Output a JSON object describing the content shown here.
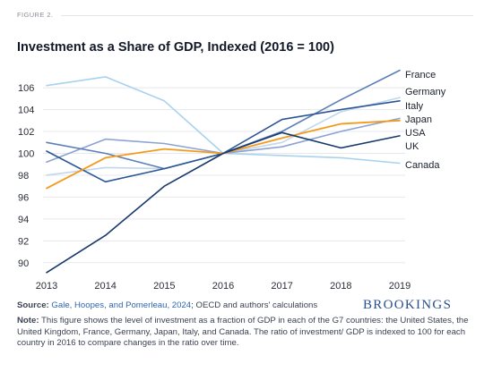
{
  "figure_label": "FIGURE 2.",
  "title": "Investment as a Share of GDP, Indexed (2016 = 100)",
  "source": {
    "prefix": "Source:",
    "link_text": "Gale, Hoopes, and Pomerleau, 2024",
    "suffix": "; OECD and authors' calculations"
  },
  "note": {
    "prefix": "Note:",
    "text": "This figure shows the level of investment as a fraction of GDP in each of the G7 countries: the United States, the United Kingdom, France, Germany, Japan, Italy, and Canada. The ratio of investment/ GDP is indexed to 100 for each country in 2016 to compare changes in the ratio over time."
  },
  "logo": "BROOKINGS",
  "chart_data": {
    "type": "line",
    "title": "Investment as a Share of GDP, Indexed (2016 = 100)",
    "xlabel": "",
    "ylabel": "",
    "x": [
      2013,
      2014,
      2015,
      2016,
      2017,
      2018,
      2019
    ],
    "x_ticks": [
      "2013",
      "2014",
      "2015",
      "2016",
      "2017",
      "2018",
      "2019"
    ],
    "y_ticks": [
      "90",
      "92",
      "94",
      "96",
      "98",
      "100",
      "102",
      "104",
      "106"
    ],
    "ylim": [
      89,
      108.3
    ],
    "grid": "horizontal",
    "legend": "direct labels at right end of lines",
    "series": [
      {
        "name": "France",
        "color": "#5b7fb8",
        "values": [
          101.0,
          100.0,
          98.6,
          100.0,
          102.0,
          104.9,
          107.6
        ]
      },
      {
        "name": "Germany",
        "color": "#c2d6ec",
        "values": [
          98.0,
          98.7,
          98.6,
          100.0,
          101.0,
          103.8,
          105.1
        ]
      },
      {
        "name": "Italy",
        "color": "#2c5594",
        "values": [
          100.2,
          97.4,
          98.6,
          100.0,
          103.1,
          104.0,
          104.8
        ]
      },
      {
        "name": "Japan",
        "color": "#8ba3d2",
        "values": [
          99.2,
          101.3,
          100.9,
          100.0,
          100.6,
          102.0,
          103.2
        ]
      },
      {
        "name": "USA",
        "color": "#f39a1d",
        "values": [
          96.8,
          99.6,
          100.4,
          100.0,
          101.4,
          102.7,
          103.0
        ]
      },
      {
        "name": "UK",
        "color": "#17396b",
        "values": [
          89.1,
          92.5,
          97.0,
          100.0,
          101.9,
          100.5,
          101.6
        ]
      },
      {
        "name": "Canada",
        "color": "#a9d2ee",
        "values": [
          106.2,
          107.0,
          104.8,
          100.0,
          99.8,
          99.6,
          99.1
        ]
      }
    ]
  },
  "colors": {
    "grid": "#e6e8ec",
    "axis_text": "#2b2f38",
    "label_text": "#1a1f2b",
    "source_link": "#2f66b3",
    "logo": "#2b4f8c"
  }
}
